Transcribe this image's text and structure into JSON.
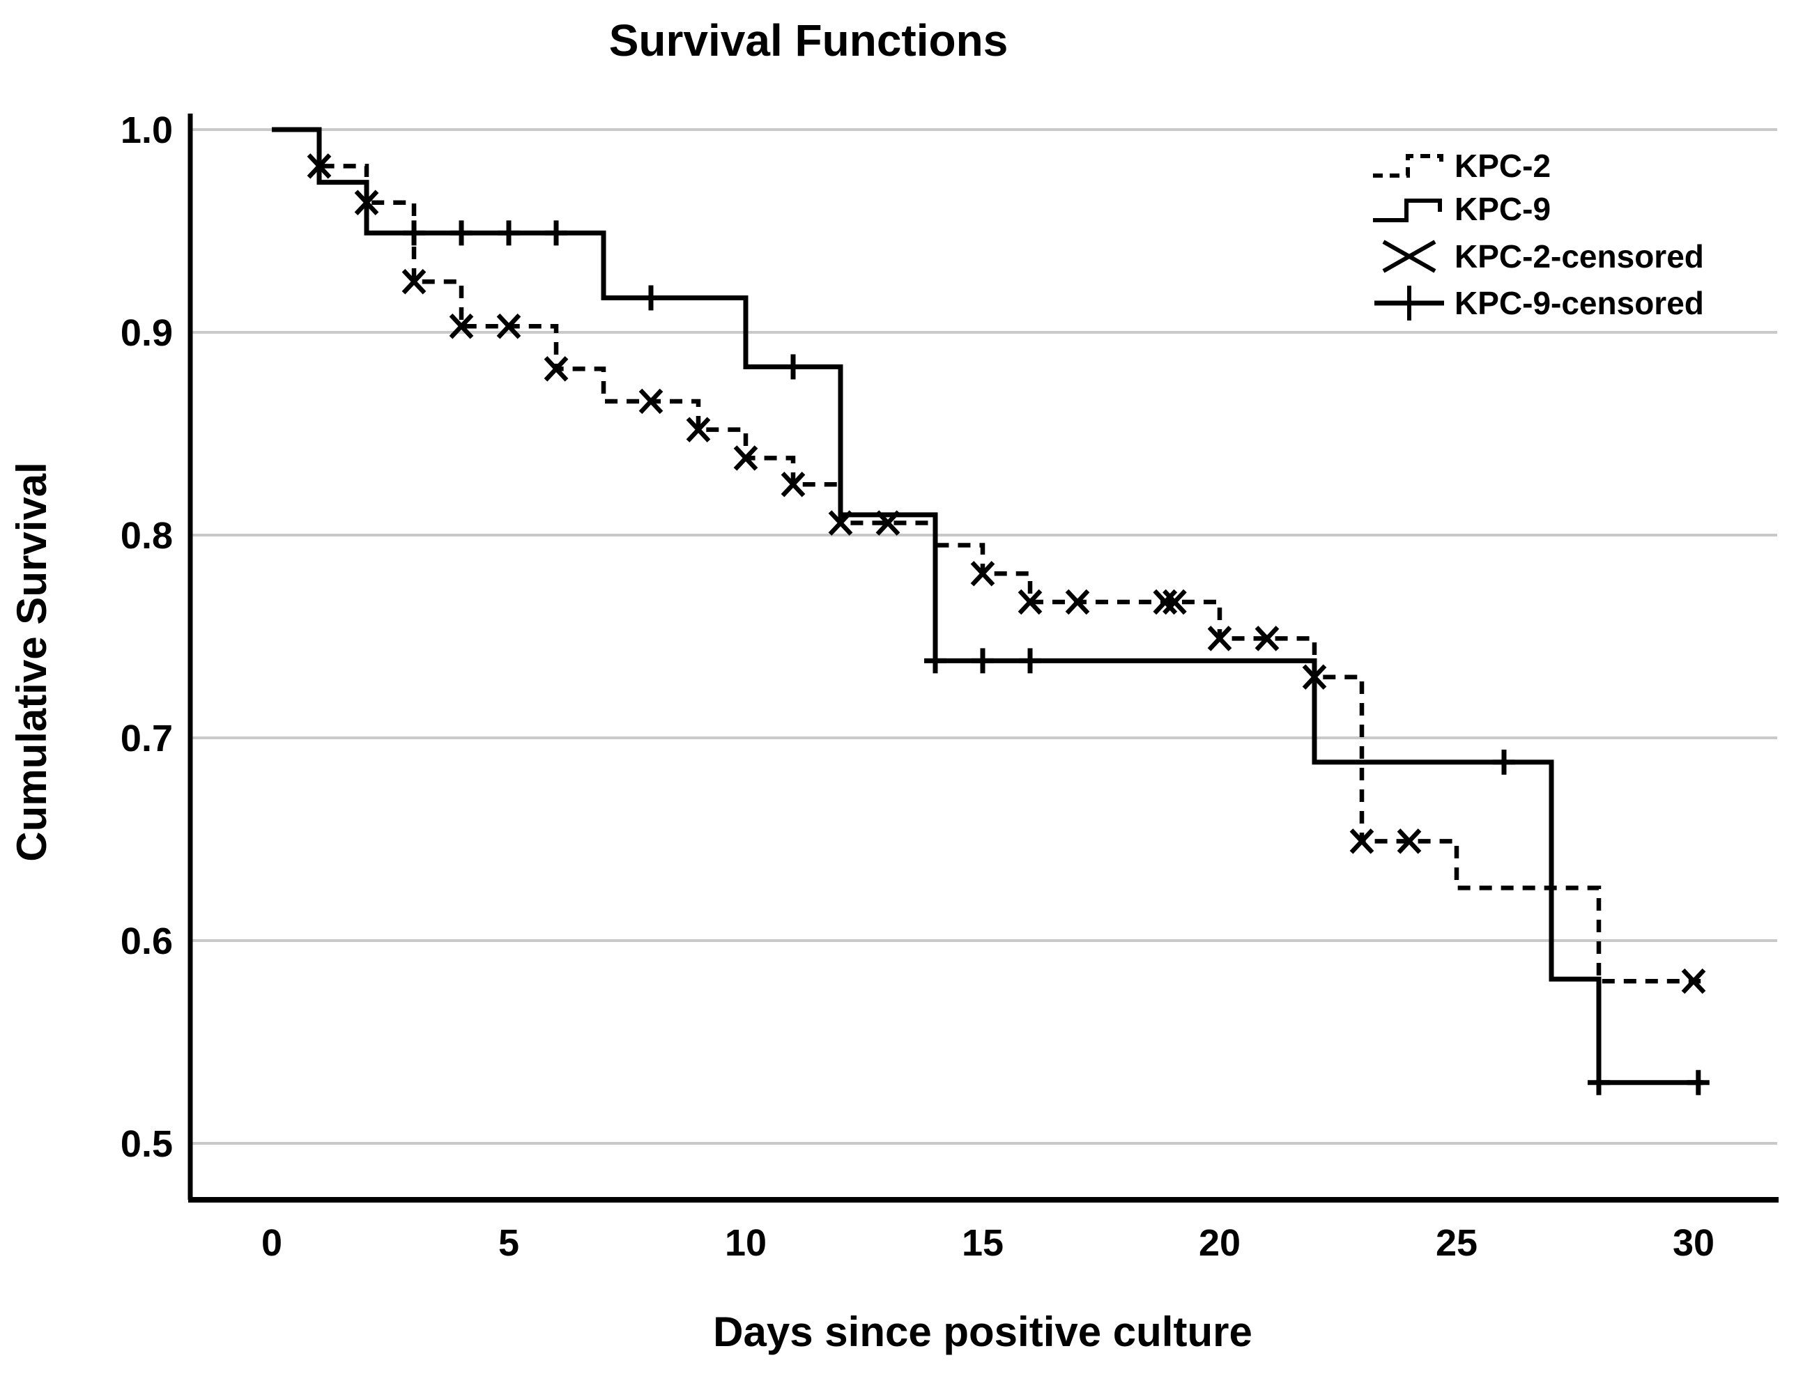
{
  "page": {
    "background": "#ffffff"
  },
  "chart_data": {
    "type": "line",
    "subtype": "kaplan-meier-step",
    "title": "Survival Functions",
    "xlabel": "Days since positive culture",
    "ylabel": "Cumulative Survival",
    "xlim": [
      0,
      30.6
    ],
    "ylim": [
      0.48,
      1.02
    ],
    "xticks": [
      0,
      5,
      10,
      15,
      20,
      25,
      30
    ],
    "yticks": [
      1.0,
      0.9,
      0.8,
      0.7,
      0.6,
      0.5
    ],
    "ytick_labels": [
      "1.0",
      "0.9",
      "0.8",
      "0.7",
      "0.6",
      "0.5"
    ],
    "grid": "horizontal-only",
    "legend_position": "upper-right",
    "colors": {
      "line": "#000000",
      "grid": "#c9c9c9",
      "text": "#000000",
      "background": "#ffffff"
    },
    "legend": [
      {
        "label": "KPC-2",
        "marker": "dashed-step"
      },
      {
        "label": "KPC-9",
        "marker": "solid-step"
      },
      {
        "label": "KPC-2-censored",
        "marker": "x"
      },
      {
        "label": "KPC-9-censored",
        "marker": "plus"
      }
    ],
    "series": [
      {
        "name": "KPC-2",
        "line_style": "dashed",
        "censor_marker": "x",
        "end_day": 30.15,
        "steps": [
          [
            0,
            1.0
          ],
          [
            1,
            0.982
          ],
          [
            2,
            0.964
          ],
          [
            3,
            0.925
          ],
          [
            4,
            0.903
          ],
          [
            6,
            0.882
          ],
          [
            7,
            0.866
          ],
          [
            9,
            0.852
          ],
          [
            10,
            0.838
          ],
          [
            11,
            0.825
          ],
          [
            12,
            0.806
          ],
          [
            14,
            0.795
          ],
          [
            15,
            0.781
          ],
          [
            16,
            0.767
          ],
          [
            20,
            0.749
          ],
          [
            22,
            0.73
          ],
          [
            23,
            0.649
          ],
          [
            25,
            0.626
          ],
          [
            28,
            0.58
          ]
        ],
        "censored": [
          [
            1,
            0.982
          ],
          [
            2,
            0.964
          ],
          [
            3,
            0.925
          ],
          [
            4,
            0.903
          ],
          [
            5,
            0.903
          ],
          [
            6,
            0.882
          ],
          [
            8,
            0.866
          ],
          [
            9,
            0.852
          ],
          [
            10,
            0.838
          ],
          [
            11,
            0.825
          ],
          [
            12,
            0.806
          ],
          [
            13,
            0.806
          ],
          [
            15,
            0.781
          ],
          [
            16,
            0.767
          ],
          [
            17,
            0.767
          ],
          [
            18.85,
            0.767
          ],
          [
            19.05,
            0.767
          ],
          [
            20,
            0.749
          ],
          [
            21,
            0.749
          ],
          [
            22,
            0.73
          ],
          [
            23,
            0.649
          ],
          [
            24,
            0.649
          ],
          [
            30,
            0.58
          ]
        ]
      },
      {
        "name": "KPC-9",
        "line_style": "solid",
        "censor_marker": "plus",
        "end_day": 30.2,
        "steps": [
          [
            0,
            1.0
          ],
          [
            1,
            0.974
          ],
          [
            2,
            0.949
          ],
          [
            7,
            0.917
          ],
          [
            10,
            0.883
          ],
          [
            12,
            0.81
          ],
          [
            14,
            0.738
          ],
          [
            22,
            0.688
          ],
          [
            27,
            0.581
          ],
          [
            28,
            0.53
          ]
        ],
        "censored": [
          [
            3,
            0.949
          ],
          [
            4,
            0.949
          ],
          [
            5,
            0.949
          ],
          [
            6,
            0.949
          ],
          [
            8,
            0.917
          ],
          [
            11,
            0.883
          ],
          [
            14,
            0.738
          ],
          [
            15,
            0.738
          ],
          [
            16,
            0.738
          ],
          [
            26,
            0.688
          ],
          [
            28,
            0.53
          ],
          [
            30.1,
            0.53
          ]
        ]
      }
    ]
  }
}
